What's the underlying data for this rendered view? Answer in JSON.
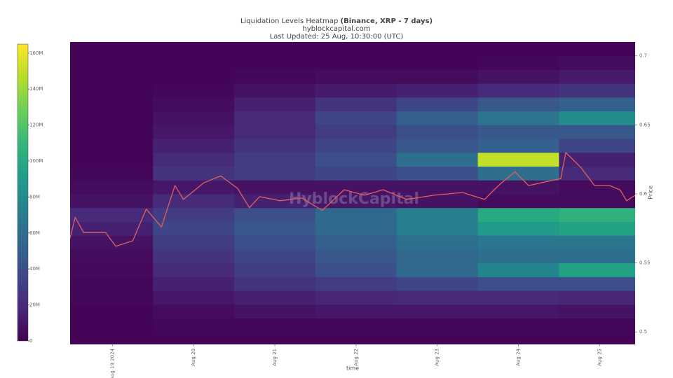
{
  "chart_data": {
    "type": "heatmap",
    "title": "Liquidation Levels Heatmap",
    "title_bold": "(Binance, XRP - 7 days)",
    "subtitle": "hyblockcapital.com",
    "updated": "Last Updated: 25 Aug, 10:30:00 (UTC)",
    "watermark": "HyblockCapital",
    "xlabel": "time",
    "ylabel": "Price",
    "xlim": [
      "2024-08-18T11:30",
      "2024-08-25T10:30"
    ],
    "xticks": [
      {
        "value": "2024-08-19T00:00",
        "label": "Aug 19 2024"
      },
      {
        "value": "2024-08-20T00:00",
        "label": "Aug 20"
      },
      {
        "value": "2024-08-21T00:00",
        "label": "Aug 21"
      },
      {
        "value": "2024-08-22T00:00",
        "label": "Aug 22"
      },
      {
        "value": "2024-08-23T00:00",
        "label": "Aug 23"
      },
      {
        "value": "2024-08-24T00:00",
        "label": "Aug 24"
      },
      {
        "value": "2024-08-25T00:00",
        "label": "Aug 25"
      }
    ],
    "ylim": [
      0.491,
      0.711
    ],
    "yticks": [
      0.5,
      0.55,
      0.6,
      0.65,
      0.7
    ],
    "zlim": [
      0,
      165
    ],
    "zticks": [
      0,
      {
        "value": 20,
        "label": "20M"
      },
      {
        "value": 40,
        "label": "40M"
      },
      {
        "value": 60,
        "label": "60M"
      },
      {
        "value": 80,
        "label": "80M"
      },
      {
        "value": 100,
        "label": "100M"
      },
      {
        "value": 120,
        "label": "120M"
      },
      {
        "value": 140,
        "label": "140M"
      },
      {
        "value": 160,
        "label": "160M"
      }
    ],
    "colorscale": [
      "#440154",
      "#482878",
      "#3e4989",
      "#31688e",
      "#26828e",
      "#1f9e89",
      "#35b779",
      "#6ece58",
      "#b5de2b",
      "#fde725"
    ],
    "xbins": [
      "2024-08-18T11:30",
      "2024-08-19T12:00",
      "2024-08-20T12:00",
      "2024-08-21T12:00",
      "2024-08-22T12:00",
      "2024-08-23T12:00",
      "2024-08-24T12:00",
      "2024-08-25T10:30"
    ],
    "ybins": [
      0.49,
      0.5,
      0.51,
      0.52,
      0.53,
      0.54,
      0.55,
      0.56,
      0.57,
      0.58,
      0.59,
      0.6,
      0.61,
      0.62,
      0.63,
      0.64,
      0.65,
      0.66,
      0.67,
      0.68,
      0.69,
      0.7,
      0.71
    ],
    "z": [
      [
        2,
        2,
        2,
        2,
        2,
        2,
        2
      ],
      [
        2,
        3,
        3,
        3,
        3,
        3,
        3
      ],
      [
        2,
        5,
        8,
        10,
        10,
        10,
        8
      ],
      [
        3,
        10,
        15,
        18,
        20,
        20,
        18
      ],
      [
        3,
        15,
        25,
        30,
        35,
        40,
        40
      ],
      [
        4,
        20,
        30,
        40,
        55,
        75,
        95
      ],
      [
        5,
        25,
        35,
        45,
        55,
        60,
        60
      ],
      [
        8,
        30,
        40,
        50,
        60,
        65,
        65
      ],
      [
        15,
        35,
        45,
        55,
        70,
        90,
        95
      ],
      [
        20,
        30,
        40,
        55,
        70,
        100,
        105
      ],
      [
        8,
        20,
        15,
        10,
        8,
        5,
        5
      ],
      [
        5,
        10,
        8,
        8,
        8,
        8,
        5
      ],
      [
        3,
        25,
        30,
        35,
        40,
        60,
        20
      ],
      [
        2,
        20,
        30,
        40,
        60,
        150,
        15
      ],
      [
        2,
        15,
        25,
        35,
        45,
        50,
        35
      ],
      [
        2,
        10,
        20,
        30,
        40,
        45,
        45
      ],
      [
        2,
        8,
        20,
        35,
        50,
        65,
        80
      ],
      [
        2,
        5,
        15,
        25,
        35,
        45,
        50
      ],
      [
        2,
        3,
        8,
        12,
        15,
        20,
        25
      ],
      [
        2,
        2,
        3,
        5,
        5,
        8,
        12
      ],
      [
        2,
        2,
        2,
        2,
        2,
        3,
        5
      ],
      [
        2,
        2,
        2,
        2,
        2,
        2,
        2
      ]
    ],
    "series": [
      {
        "color": "#e0605a",
        "x": [
          "2024-08-18T11:30",
          "2024-08-18T13:00",
          "2024-08-18T15:30",
          "2024-08-18T22:00",
          "2024-08-19T01:00",
          "2024-08-19T06:00",
          "2024-08-19T10:00",
          "2024-08-19T14:30",
          "2024-08-19T18:30",
          "2024-08-19T21:00",
          "2024-08-20T03:00",
          "2024-08-20T08:00",
          "2024-08-20T13:00",
          "2024-08-20T16:30",
          "2024-08-20T19:30",
          "2024-08-21T01:30",
          "2024-08-21T08:00",
          "2024-08-21T14:00",
          "2024-08-21T20:30",
          "2024-08-22T02:30",
          "2024-08-22T08:00",
          "2024-08-22T15:00",
          "2024-08-22T23:00",
          "2024-08-23T07:30",
          "2024-08-23T14:00",
          "2024-08-23T16:00",
          "2024-08-23T19:00",
          "2024-08-23T23:00",
          "2024-08-24T03:00",
          "2024-08-24T08:30",
          "2024-08-24T12:30",
          "2024-08-24T14:00",
          "2024-08-24T18:30",
          "2024-08-24T22:30",
          "2024-08-25T03:00",
          "2024-08-25T06:00",
          "2024-08-25T08:00",
          "2024-08-25T10:30"
        ],
        "values": [
          0.568,
          0.583,
          0.572,
          0.572,
          0.562,
          0.566,
          0.589,
          0.576,
          0.606,
          0.596,
          0.608,
          0.613,
          0.604,
          0.59,
          0.598,
          0.595,
          0.597,
          0.588,
          0.603,
          0.599,
          0.603,
          0.596,
          0.599,
          0.601,
          0.596,
          0.601,
          0.608,
          0.616,
          0.606,
          0.609,
          0.611,
          0.63,
          0.619,
          0.606,
          0.606,
          0.603,
          0.595,
          0.599
        ]
      }
    ]
  }
}
